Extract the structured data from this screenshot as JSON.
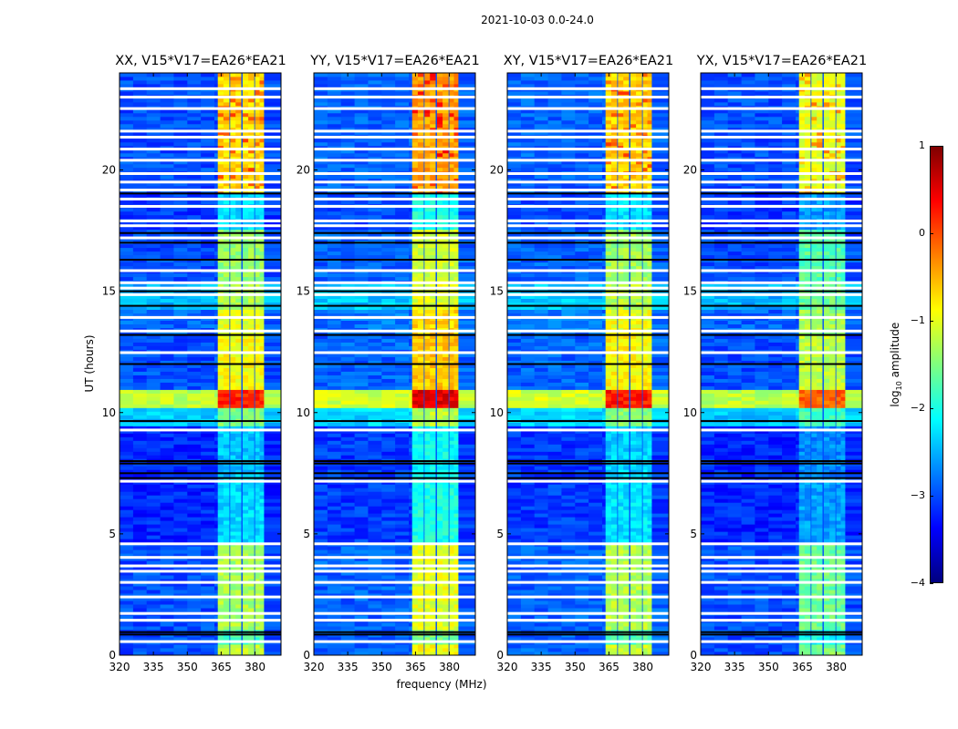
{
  "suptitle": "2021-10-03 0.0-24.0",
  "chart_data": {
    "type": "heatmap",
    "xlabel": "frequency (MHz)",
    "ylabel": "UT (hours)",
    "xlim": [
      320,
      391.5
    ],
    "ylim": [
      0,
      24
    ],
    "xticks": [
      "320",
      "335",
      "350",
      "365",
      "380"
    ],
    "xtick_values": [
      320,
      335,
      350,
      365,
      380
    ],
    "yticks": [
      "0",
      "5",
      "10",
      "15",
      "20"
    ],
    "ytick_values": [
      0,
      5,
      10,
      15,
      20
    ],
    "colormap": "jet",
    "colorbar": {
      "label_pre": "log",
      "label_sub": "10",
      "label_post": " amplitude",
      "range": [
        -4,
        1
      ],
      "ticks": [
        "1",
        "0",
        "−1",
        "−2",
        "−3",
        "−4"
      ],
      "tick_values": [
        1,
        0,
        -1,
        -2,
        -3,
        -4
      ]
    },
    "panels": [
      {
        "title": "XX, V15*V17=EA26*EA21",
        "band_offset": 0,
        "bg_offset": 0
      },
      {
        "title": "YY, V15*V17=EA26*EA21",
        "band_offset": 0.3,
        "bg_offset": 0.1
      },
      {
        "title": "XY, V15*V17=EA26*EA21",
        "band_offset": 0.05,
        "bg_offset": 0.1
      },
      {
        "title": "YX, V15*V17=EA26*EA21",
        "band_offset": -0.3,
        "bg_offset": 0
      }
    ],
    "subbands_mhz": [
      [
        363.5,
        368.5
      ],
      [
        369.0,
        373.8
      ],
      [
        374.5,
        379.5
      ],
      [
        380.0,
        384.0
      ]
    ],
    "time_segments": [
      {
        "start": 0.0,
        "end": 0.5,
        "bg": -3.0,
        "band": -1.2
      },
      {
        "start": 0.5,
        "end": 1.0,
        "bg": -3.0,
        "band": -1.8
      },
      {
        "start": 1.0,
        "end": 4.6,
        "bg": -3.0,
        "band": -1.3
      },
      {
        "start": 4.6,
        "end": 7.3,
        "bg": -3.2,
        "band": -2.3
      },
      {
        "start": 7.3,
        "end": 9.5,
        "bg": -3.2,
        "band": -2.4
      },
      {
        "start": 9.5,
        "end": 10.2,
        "bg": -2.4,
        "band": -1.5
      },
      {
        "start": 10.2,
        "end": 10.9,
        "bg": -1.2,
        "band": 0.2
      },
      {
        "start": 10.9,
        "end": 13.2,
        "bg": -3.0,
        "band": -0.9
      },
      {
        "start": 13.2,
        "end": 14.3,
        "bg": -2.9,
        "band": -1.0
      },
      {
        "start": 14.3,
        "end": 15.3,
        "bg": -2.5,
        "band": -1.3
      },
      {
        "start": 15.3,
        "end": 17.5,
        "bg": -3.0,
        "band": -1.4
      },
      {
        "start": 17.5,
        "end": 19.0,
        "bg": -3.1,
        "band": -2.3
      },
      {
        "start": 19.0,
        "end": 24.0,
        "bg": -3.0,
        "band": -0.7
      }
    ],
    "flagged_hours": [
      0.56,
      1.44,
      1.72,
      2.4,
      3.0,
      3.46,
      3.68,
      4.03,
      4.59,
      7.17,
      9.28,
      12.47,
      13.36,
      13.92,
      14.86,
      15.13,
      15.35,
      15.85,
      17.2,
      17.7,
      17.9,
      18.5,
      18.8,
      19.17,
      19.5,
      19.85,
      20.4,
      20.86,
      21.35,
      21.6,
      22.53,
      23.0,
      23.35
    ],
    "zero_hours": [
      0.85,
      0.95,
      7.3,
      7.5,
      7.9,
      8.0,
      9.65,
      12.0,
      13.2,
      14.4,
      15.0,
      16.3,
      17.0,
      17.4,
      19.03
    ]
  }
}
